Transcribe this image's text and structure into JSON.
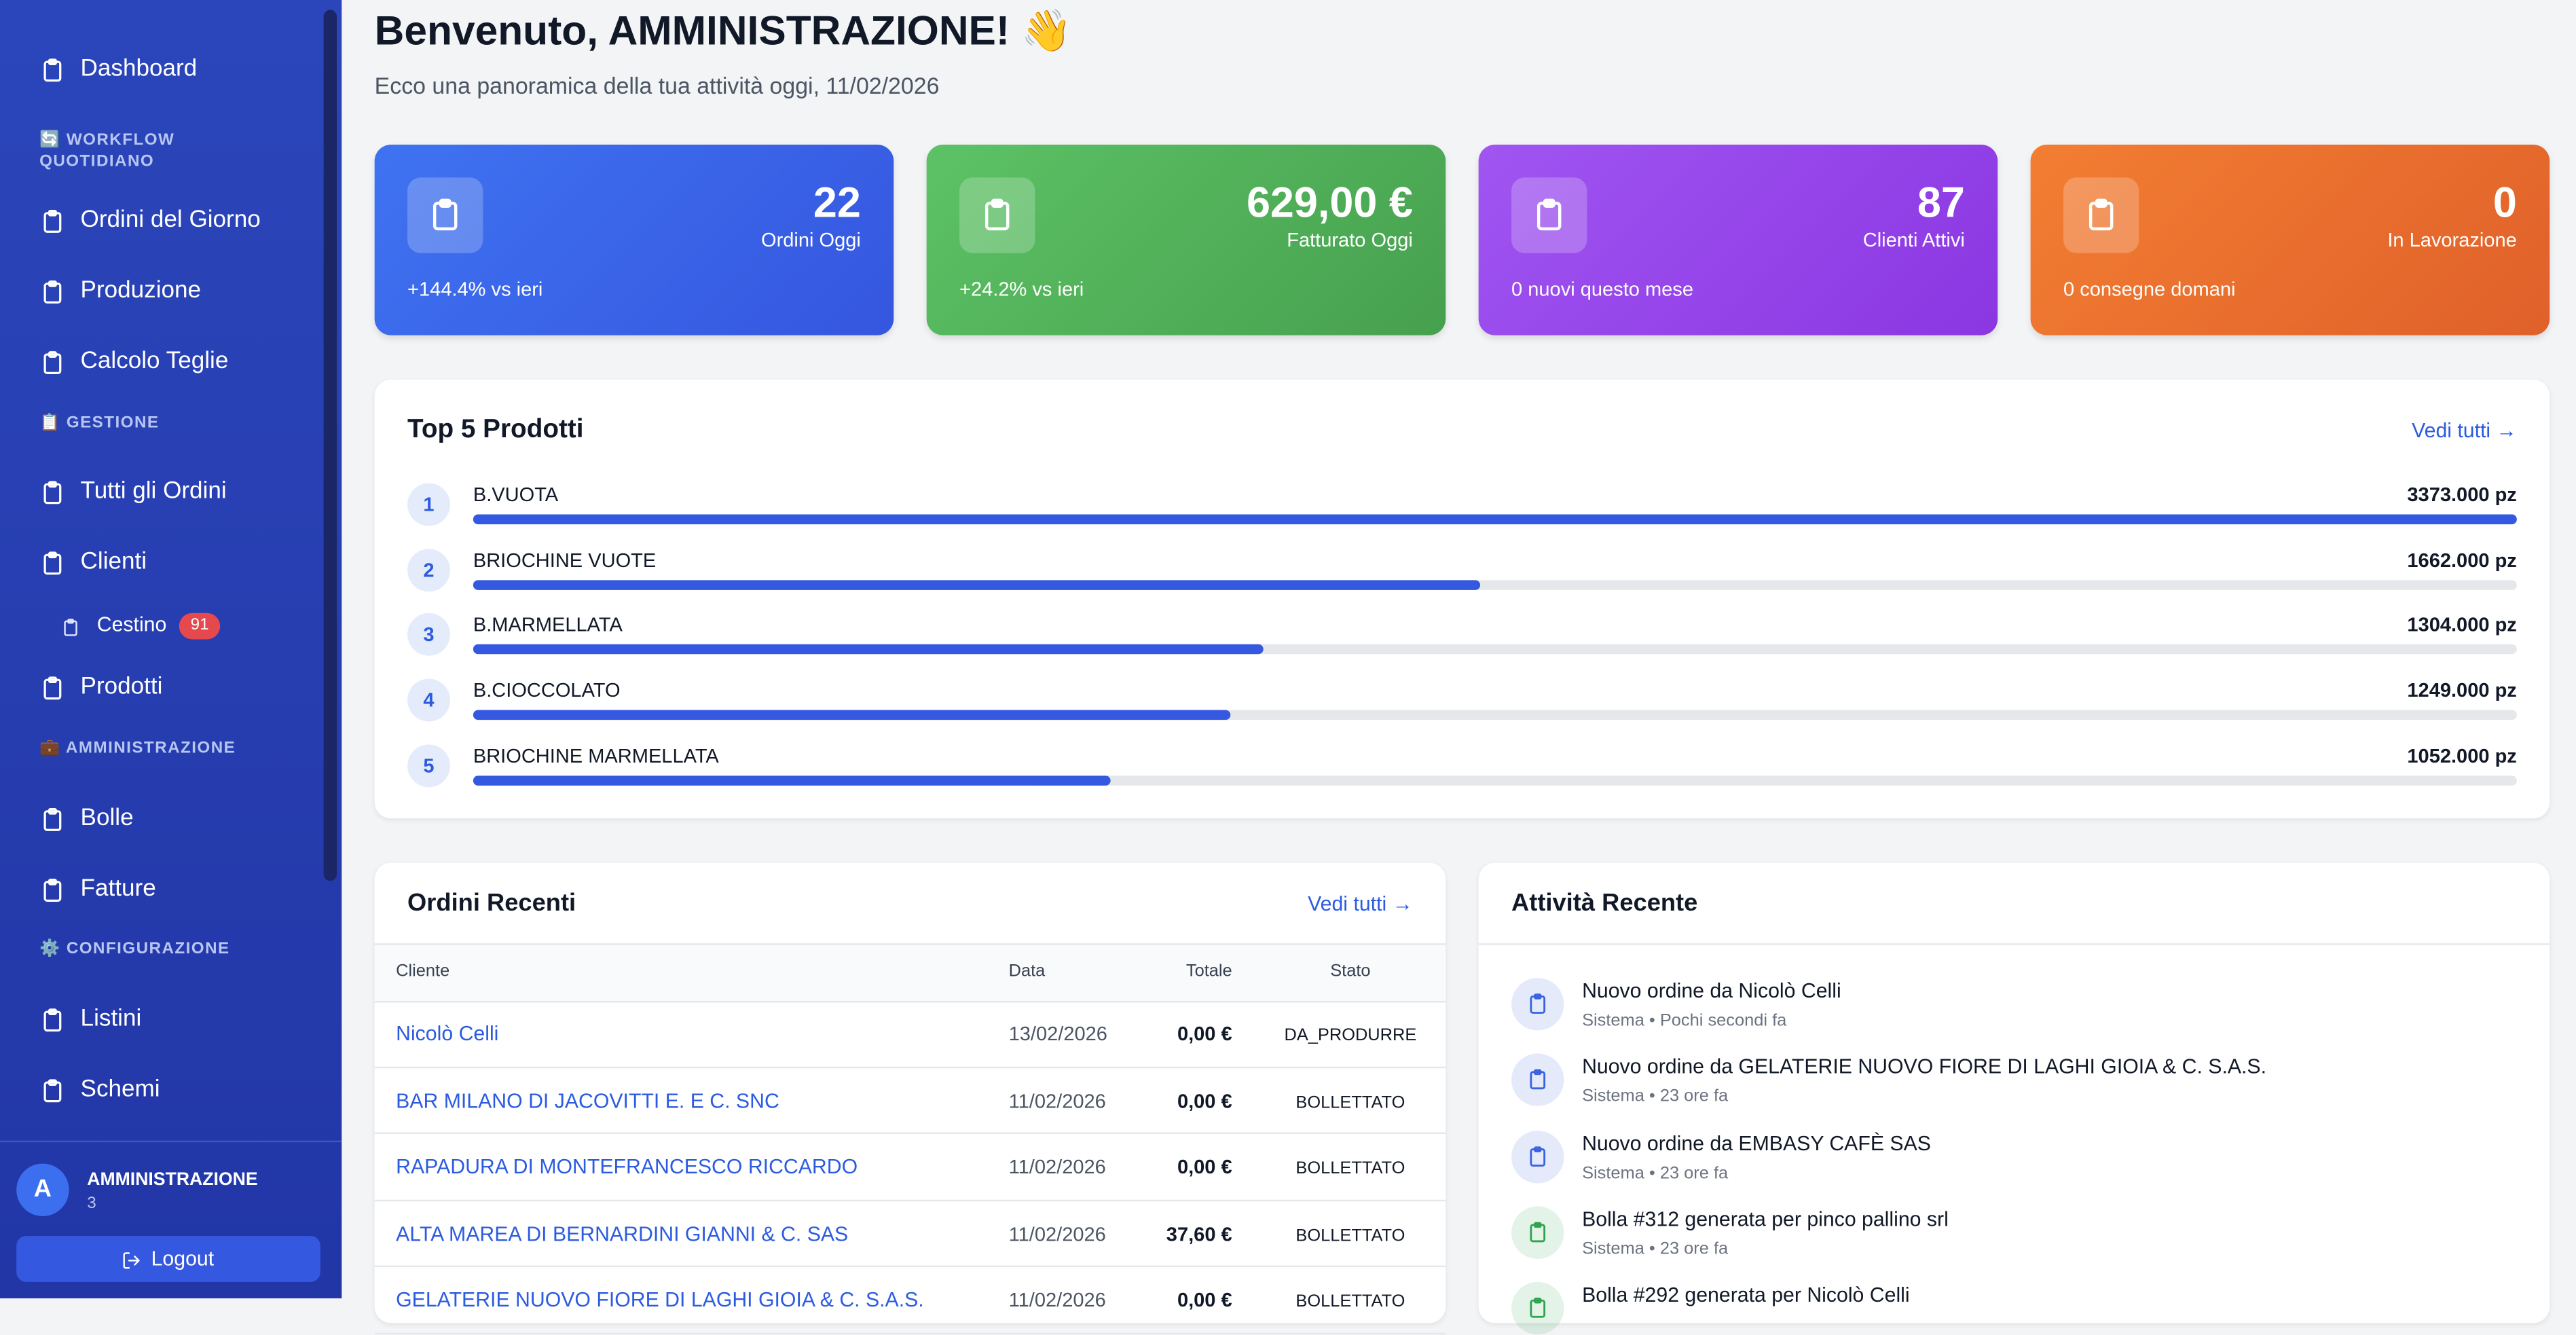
{
  "sidebar": {
    "nav": [
      {
        "label": "Dashboard"
      },
      {
        "section": "🔄 WORKFLOW QUOTIDIANO"
      },
      {
        "label": "Ordini del Giorno"
      },
      {
        "label": "Produzione"
      },
      {
        "label": "Calcolo Teglie"
      },
      {
        "section": "📋 GESTIONE"
      },
      {
        "label": "Tutti gli Ordini"
      },
      {
        "label": "Clienti"
      },
      {
        "label": "Cestino",
        "badge": "91"
      },
      {
        "label": "Prodotti"
      },
      {
        "section": "💼 AMMINISTRAZIONE"
      },
      {
        "label": "Bolle"
      },
      {
        "label": "Fatture"
      },
      {
        "section": "⚙️ CONFIGURAZIONE"
      },
      {
        "label": "Listini"
      },
      {
        "label": "Schemi"
      }
    ],
    "user": {
      "initial": "A",
      "name": "AMMINISTRAZIONE",
      "id": "3"
    },
    "logout": "Logout"
  },
  "header": {
    "title": "Benvenuto, AMMINISTRAZIONE! 👋",
    "subtitle": "Ecco una panoramica della tua attività oggi, 11/02/2026"
  },
  "stats": [
    {
      "value": "22",
      "label": "Ordini Oggi",
      "note": "+144.4% vs ieri",
      "color": [
        "#3f73f1",
        "#3556df"
      ]
    },
    {
      "value": "629,00 €",
      "label": "Fatturato Oggi",
      "note": "+24.2% vs ieri",
      "color": [
        "#5dc265",
        "#46a04e"
      ]
    },
    {
      "value": "87",
      "label": "Clienti Attivi",
      "note": "0 nuovi questo mese",
      "color": [
        "#a055f1",
        "#8b36e2"
      ]
    },
    {
      "value": "0",
      "label": "In Lavorazione",
      "note": "0 consegne domani",
      "color": [
        "#f27e32",
        "#e0602a"
      ]
    }
  ],
  "top_products": {
    "title": "Top 5 Prodotti",
    "link": "Vedi tutti →",
    "items": [
      {
        "rank": "1",
        "name": "B.VUOTA",
        "quantity": 3373,
        "quantity_label": "3373.000 pz"
      },
      {
        "rank": "2",
        "name": "BRIOCHINE VUOTE",
        "quantity": 1662,
        "quantity_label": "1662.000 pz"
      },
      {
        "rank": "3",
        "name": "B.MARMELLATA",
        "quantity": 1304,
        "quantity_label": "1304.000 pz"
      },
      {
        "rank": "4",
        "name": "B.CIOCCOLATO",
        "quantity": 1249,
        "quantity_label": "1249.000 pz"
      },
      {
        "rank": "5",
        "name": "BRIOCHINE MARMELLATA",
        "quantity": 1052,
        "quantity_label": "1052.000 pz"
      }
    ]
  },
  "recent_orders": {
    "title": "Ordini Recenti",
    "link": "Vedi tutti →",
    "columns": [
      "Cliente",
      "Data",
      "Totale",
      "Stato"
    ],
    "rows": [
      [
        "Nicolò Celli",
        "13/02/2026",
        "0,00 €",
        "DA_PRODURRE"
      ],
      [
        "BAR MILANO DI JACOVITTI E. E C. SNC",
        "11/02/2026",
        "0,00 €",
        "BOLLETTATO"
      ],
      [
        "RAPADURA DI MONTEFRANCESCO RICCARDO",
        "11/02/2026",
        "0,00 €",
        "BOLLETTATO"
      ],
      [
        "ALTA MAREA DI BERNARDINI GIANNI & C. SAS",
        "11/02/2026",
        "37,60 €",
        "BOLLETTATO"
      ],
      [
        "GELATERIE NUOVO FIORE DI LAGHI GIOIA & C. S.A.S.",
        "11/02/2026",
        "0,00 €",
        "BOLLETTATO"
      ]
    ]
  },
  "activity": {
    "title": "Attività Recente",
    "items": [
      {
        "text": "Nuovo ordine da Nicolò Celli",
        "meta": "Sistema • Pochi secondi fa",
        "color": "#3a62e0"
      },
      {
        "text": "Nuovo ordine da GELATERIE NUOVO FIORE DI LAGHI GIOIA & C. S.A.S.",
        "meta": "Sistema • 23 ore fa",
        "color": "#3a62e0"
      },
      {
        "text": "Nuovo ordine da EMBASY CAFÈ SAS",
        "meta": "Sistema • 23 ore fa",
        "color": "#3a62e0"
      },
      {
        "text": "Bolla #312 generata per pinco pallino srl",
        "meta": "Sistema • 23 ore fa",
        "color": "#2ea34e"
      },
      {
        "text": "Bolla #292 generata per Nicolò Celli",
        "color": "#2ea34e"
      }
    ]
  }
}
